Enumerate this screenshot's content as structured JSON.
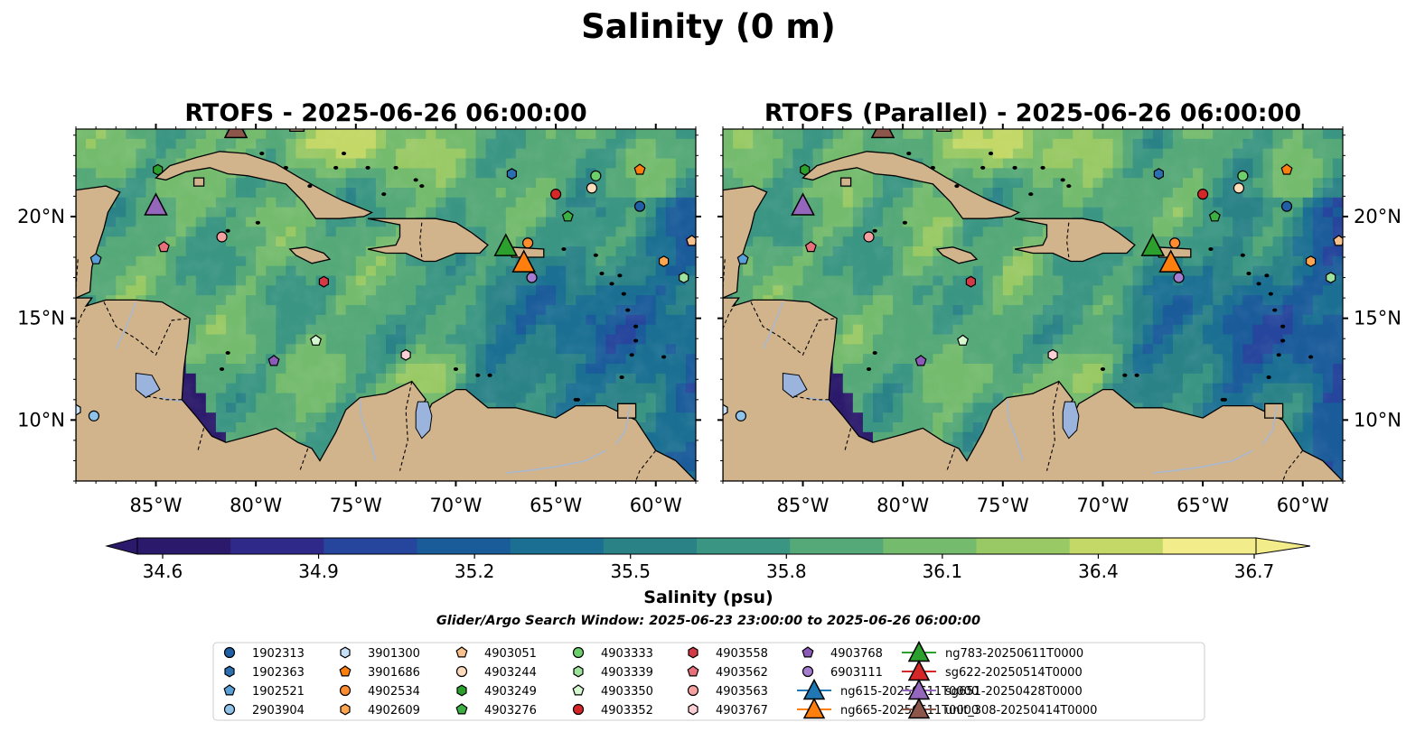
{
  "figure": {
    "title": "Salinity (0 m)",
    "search_window": "Glider/Argo Search Window: 2025-06-23 23:00:00 to 2025-06-26 06:00:00"
  },
  "chart_data": [
    {
      "type": "heatmap",
      "title": "RTOFS - 2025-06-26 06:00:00",
      "x_range": [
        -89,
        -58
      ],
      "y_range": [
        7,
        24.3
      ],
      "x_ticks": [
        "85°W",
        "80°W",
        "75°W",
        "70°W",
        "65°W",
        "60°W"
      ],
      "x_tick_values": [
        -85,
        -80,
        -75,
        -70,
        -65,
        -60
      ],
      "y_ticks": [
        "20°N",
        "15°N",
        "10°N"
      ],
      "y_tick_values": [
        20,
        15,
        10
      ],
      "y_tick_side": "left",
      "variant": "a"
    },
    {
      "type": "heatmap",
      "title": "RTOFS (Parallel) - 2025-06-26 06:00:00",
      "x_range": [
        -89,
        -58
      ],
      "y_range": [
        7,
        24.3
      ],
      "x_ticks": [
        "85°W",
        "80°W",
        "75°W",
        "70°W",
        "65°W",
        "60°W"
      ],
      "x_tick_values": [
        -85,
        -80,
        -75,
        -70,
        -65,
        -60
      ],
      "y_ticks": [
        "20°N",
        "15°N",
        "10°N"
      ],
      "y_tick_values": [
        20,
        15,
        10
      ],
      "y_tick_side": "right",
      "variant": "b"
    }
  ],
  "colorbar": {
    "label": "Salinity (psu)",
    "min": 34.6,
    "max": 36.7,
    "ticks": [
      "34.6",
      "34.9",
      "35.2",
      "35.5",
      "35.8",
      "36.1",
      "36.4",
      "36.7"
    ],
    "colors": [
      "#2b1a6b",
      "#2f2a8a",
      "#26459c",
      "#1a5b9a",
      "#1a6f92",
      "#2a8287",
      "#3a9582",
      "#55a877",
      "#74bb6d",
      "#99c965",
      "#c3d867",
      "#f3ec8a"
    ]
  },
  "colors": {
    "land": "#d2b48c",
    "deep_pacific": "#2a1a6a",
    "lake": "#9ab4de",
    "river": "#a8b8d0"
  },
  "observations": [
    {
      "id": "1902313",
      "marker": "circle",
      "color": "#1f5fa6",
      "lon": -60.8,
      "lat": 20.5
    },
    {
      "id": "1902363",
      "marker": "hexagon",
      "color": "#2b6fb3",
      "lon": -67.2,
      "lat": 22.1
    },
    {
      "id": "1902521",
      "marker": "pentagon",
      "color": "#5aa0d8",
      "lon": -88.0,
      "lat": 17.9
    },
    {
      "id": "2903904",
      "marker": "circle",
      "color": "#8fc3ea",
      "lon": -88.1,
      "lat": 10.2
    },
    {
      "id": "3901300",
      "marker": "hexagon",
      "color": "#c6e0f7",
      "lon": -89.0,
      "lat": 10.5
    },
    {
      "id": "3901686",
      "marker": "pentagon",
      "color": "#ff7f0e",
      "lon": -60.8,
      "lat": 22.3
    },
    {
      "id": "4902534",
      "marker": "circle",
      "color": "#ff8c2e",
      "lon": -66.4,
      "lat": 18.7
    },
    {
      "id": "4902609",
      "marker": "hexagon",
      "color": "#ffa550",
      "lon": -59.6,
      "lat": 17.8
    },
    {
      "id": "4903051",
      "marker": "pentagon",
      "color": "#f8c08a",
      "lon": -58.2,
      "lat": 18.8
    },
    {
      "id": "4903244",
      "marker": "circle",
      "color": "#ffdcbc",
      "lon": -63.2,
      "lat": 21.4
    },
    {
      "id": "4903249",
      "marker": "hexagon",
      "color": "#2ca02c",
      "lon": -84.9,
      "lat": 22.3
    },
    {
      "id": "4903276",
      "marker": "pentagon",
      "color": "#3cb043",
      "lon": -64.4,
      "lat": 20.0
    },
    {
      "id": "4903333",
      "marker": "circle",
      "color": "#6ccf6c",
      "lon": -63.0,
      "lat": 22.0
    },
    {
      "id": "4903339",
      "marker": "hexagon",
      "color": "#9de39d",
      "lon": -58.6,
      "lat": 17.0
    },
    {
      "id": "4903350",
      "marker": "pentagon",
      "color": "#d4f7d0",
      "lon": -77.0,
      "lat": 13.9
    },
    {
      "id": "4903352",
      "marker": "circle",
      "color": "#d62728",
      "lon": -65.0,
      "lat": 21.1
    },
    {
      "id": "4903558",
      "marker": "hexagon",
      "color": "#d43a45",
      "lon": -76.6,
      "lat": 16.8
    },
    {
      "id": "4903562",
      "marker": "pentagon",
      "color": "#e8707a",
      "lon": -84.6,
      "lat": 18.5
    },
    {
      "id": "4903563",
      "marker": "circle",
      "color": "#f4a0a0",
      "lon": -81.7,
      "lat": 19.0
    },
    {
      "id": "4903767",
      "marker": "hexagon",
      "color": "#fcd0d4",
      "lon": -72.5,
      "lat": 13.2
    },
    {
      "id": "4903768",
      "marker": "pentagon",
      "color": "#8c5bb8",
      "lon": -79.1,
      "lat": 12.9
    },
    {
      "id": "6903111",
      "marker": "circle",
      "color": "#a57cd0",
      "lon": -66.2,
      "lat": 17.0
    },
    {
      "id": "ng615-20250611T0000",
      "marker": "triangle",
      "color": "#1f77b4",
      "lon": null,
      "lat": null
    },
    {
      "id": "ng665-20250611T0000",
      "marker": "triangle",
      "color": "#ff7f0e",
      "lon": -66.6,
      "lat": 17.7
    },
    {
      "id": "ng783-20250611T0000",
      "marker": "triangle",
      "color": "#2ca02c",
      "lon": -67.5,
      "lat": 18.5
    },
    {
      "id": "sg622-20250514T0000",
      "marker": "triangle",
      "color": "#d62728",
      "lon": null,
      "lat": null
    },
    {
      "id": "sg651-20250428T0000",
      "marker": "triangle",
      "color": "#9467bd",
      "lon": -85.0,
      "lat": 20.5
    },
    {
      "id": "unit_308-20250414T0000",
      "marker": "triangle",
      "color": "#8c564b",
      "lon": -81.0,
      "lat": 24.3
    }
  ]
}
